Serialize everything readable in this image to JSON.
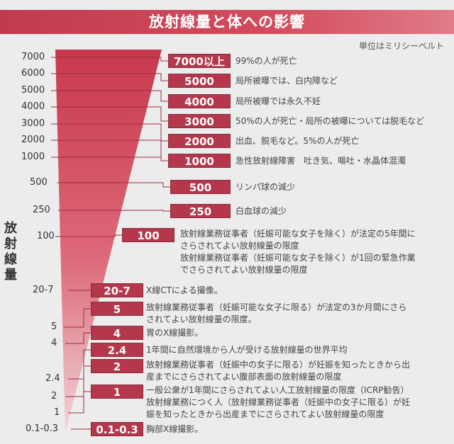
{
  "header": {
    "title": "放射線量と体への影響"
  },
  "unit_note": "単位はミリシーベルト",
  "axis_title": [
    "放",
    "射",
    "線",
    "量"
  ],
  "scale_labels": [
    "7000",
    "6000",
    "5000",
    "4000",
    "3000",
    "2000",
    "1000",
    "500",
    "250",
    "100",
    "20-7",
    "5",
    "4",
    "2.4",
    "2",
    "1",
    "0.1-0.3"
  ],
  "items": [
    {
      "value": "7000以上",
      "lines": [
        "99%の人が死亡"
      ]
    },
    {
      "value": "5000",
      "lines": [
        "局所被曝では、白内障など"
      ]
    },
    {
      "value": "4000",
      "lines": [
        "局所被曝では永久不妊"
      ]
    },
    {
      "value": "3000",
      "lines": [
        "50%の人が死亡・局所の被曝については脱毛など"
      ]
    },
    {
      "value": "2000",
      "lines": [
        "出血、脱毛など。5%の人が死亡"
      ]
    },
    {
      "value": "1000",
      "lines": [
        "急性放射線障害　吐き気、嘔吐・水晶体混濁"
      ]
    },
    {
      "value": "500",
      "lines": [
        "リンパ球の減少"
      ]
    },
    {
      "value": "250",
      "lines": [
        "白血球の減少"
      ]
    },
    {
      "value": "100",
      "lines": [
        "放射線業務従事者（妊娠可能な女子を除く）が法定の5年間に",
        "さらされてよい放射線量の限度",
        "放射線業務従事者（妊娠可能な女子を除く）が1回の緊急作業",
        "でさらされてよい放射線量の限度"
      ]
    },
    {
      "value": "20-7",
      "lines": [
        "X線CTによる撮像。"
      ]
    },
    {
      "value": "5",
      "lines": [
        "放射線業務従事者（妊娠可能な女子に限る）が法定の3か月間にさら",
        "されてよい放射線量の限度。"
      ]
    },
    {
      "value": "4",
      "lines": [
        "胃のX線撮影。"
      ]
    },
    {
      "value": "2.4",
      "lines": [
        "1年間に自然環境から人が受ける放射線量の世界平均"
      ]
    },
    {
      "value": "2",
      "lines": [
        "放射線業務従事者（妊娠中の女子に限る）が妊娠を知ったときから出",
        "産までにさらされてよい腹部表面の放射線量の限度"
      ]
    },
    {
      "value": "1",
      "lines": [
        "一般公衆が1年間にさらされてよい人工放射線量の限度（ICRP勧告）",
        "放射線業務につく人（放射線業務従事者（妊娠中の女子に限る）が妊",
        "娠を知ったときから出産までにさらされてよい放射線量の限度"
      ]
    },
    {
      "value": "0.1-0.3",
      "lines": [
        "胸部X線撮影。"
      ]
    }
  ],
  "colors": {
    "accent": "#b5374c",
    "banner": "#c23a4e",
    "background": "#ececec"
  }
}
